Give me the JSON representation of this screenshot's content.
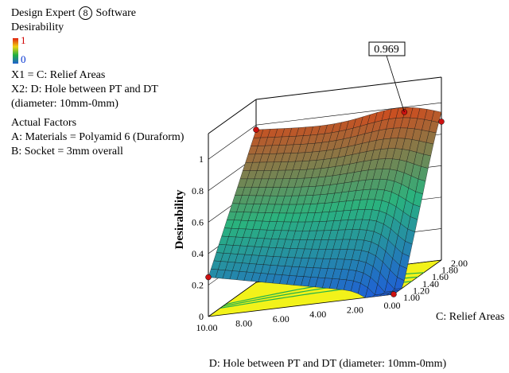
{
  "header": {
    "software_name": "Design Expert",
    "version_mark": "8",
    "software_suffix": "Software",
    "response_name": "Desirability",
    "scale_high": "1",
    "scale_low": "0",
    "x1_line": "X1 = C: Relief Areas",
    "x2_line1": "X2: D: Hole between PT and DT",
    "x2_line2": "(diameter: 10mm-0mm)",
    "actual_factors_title": "Actual Factors",
    "factor_a": "A: Materials = Polyamid 6 (Duraform)",
    "factor_b": "B: Socket = 3mm overall"
  },
  "colors": {
    "low": "#1f5fd6",
    "mid": "#2ab37e",
    "high": "#d24a1c",
    "floor": "#f2f21a",
    "contour": "#22b14c",
    "marker": "#cc1111"
  },
  "chart_data": {
    "type": "surface3d",
    "zlabel": "Desirability",
    "xlabel": "D: Hole between PT and DT (diameter: 10mm-0mm)",
    "ylabel": "C: Relief Areas",
    "peak_label": "0.969",
    "x_ticks": [
      "10.00",
      "8.00",
      "6.00",
      "4.00",
      "2.00",
      "0.00"
    ],
    "y_ticks": [
      "1.00",
      "1.20",
      "1.40",
      "1.60",
      "1.80",
      "2.00"
    ],
    "z_ticks": [
      "0",
      "0.2",
      "0.4",
      "0.6",
      "0.8",
      "1"
    ],
    "xlim": [
      0,
      10
    ],
    "ylim": [
      1,
      2
    ],
    "zlim": [
      0,
      1
    ],
    "surface_corners": [
      {
        "D": 10,
        "C": 1,
        "desirability": 0.25
      },
      {
        "D": 10,
        "C": 2,
        "desirability": 0.97
      },
      {
        "D": 0,
        "C": 2,
        "desirability": 0.88
      },
      {
        "D": 0,
        "C": 1,
        "desirability": 0.0
      }
    ],
    "peak": {
      "D": 2,
      "C": 2,
      "desirability": 0.969
    },
    "grid_lines": true
  }
}
